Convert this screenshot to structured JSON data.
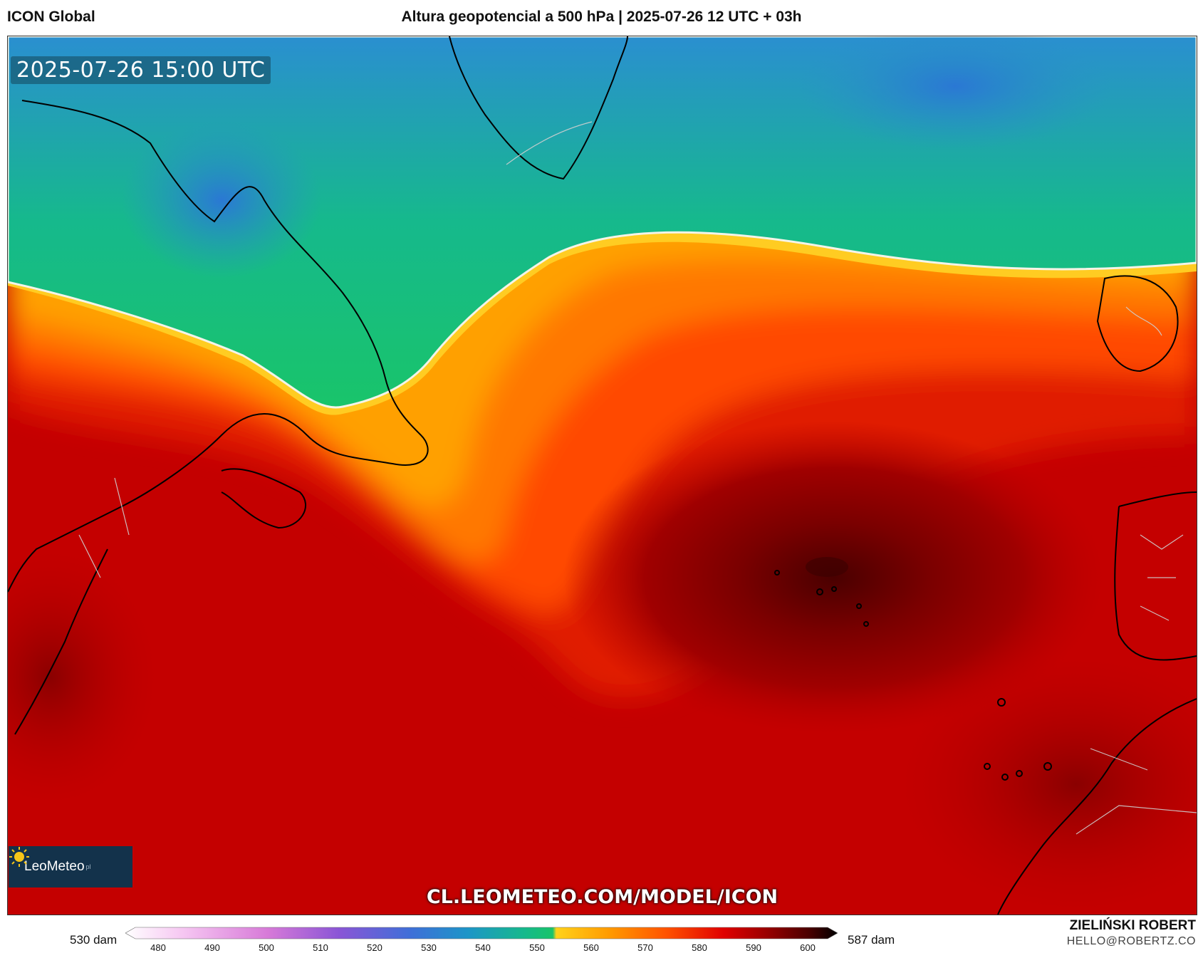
{
  "header": {
    "model": "ICON Global",
    "title": "Altura geopotencial a 500 hPa | 2025-07-26 12 UTC + 03h"
  },
  "map": {
    "timestamp": "2025-07-26 15:00 UTC",
    "url": "CL.LEOMETEO.COM/MODEL/ICON",
    "logo": {
      "name": "LeoMeteo",
      "suffix": "pl",
      "icon": "sun-icon"
    },
    "colors": {
      "green": "#19c46a",
      "yellow": "#ffc21a",
      "orange": "#ff6a00",
      "red": "#d20000",
      "dark_red": "#7a0000"
    }
  },
  "legend": {
    "min_label": "530 dam",
    "max_label": "587 dam",
    "ticks": [
      "480",
      "490",
      "500",
      "510",
      "520",
      "530",
      "540",
      "550",
      "560",
      "570",
      "580",
      "590",
      "600"
    ]
  },
  "credits": {
    "author": "ZIELIŃSKI ROBERT",
    "email": "HELLO@ROBERTZ.CO"
  }
}
